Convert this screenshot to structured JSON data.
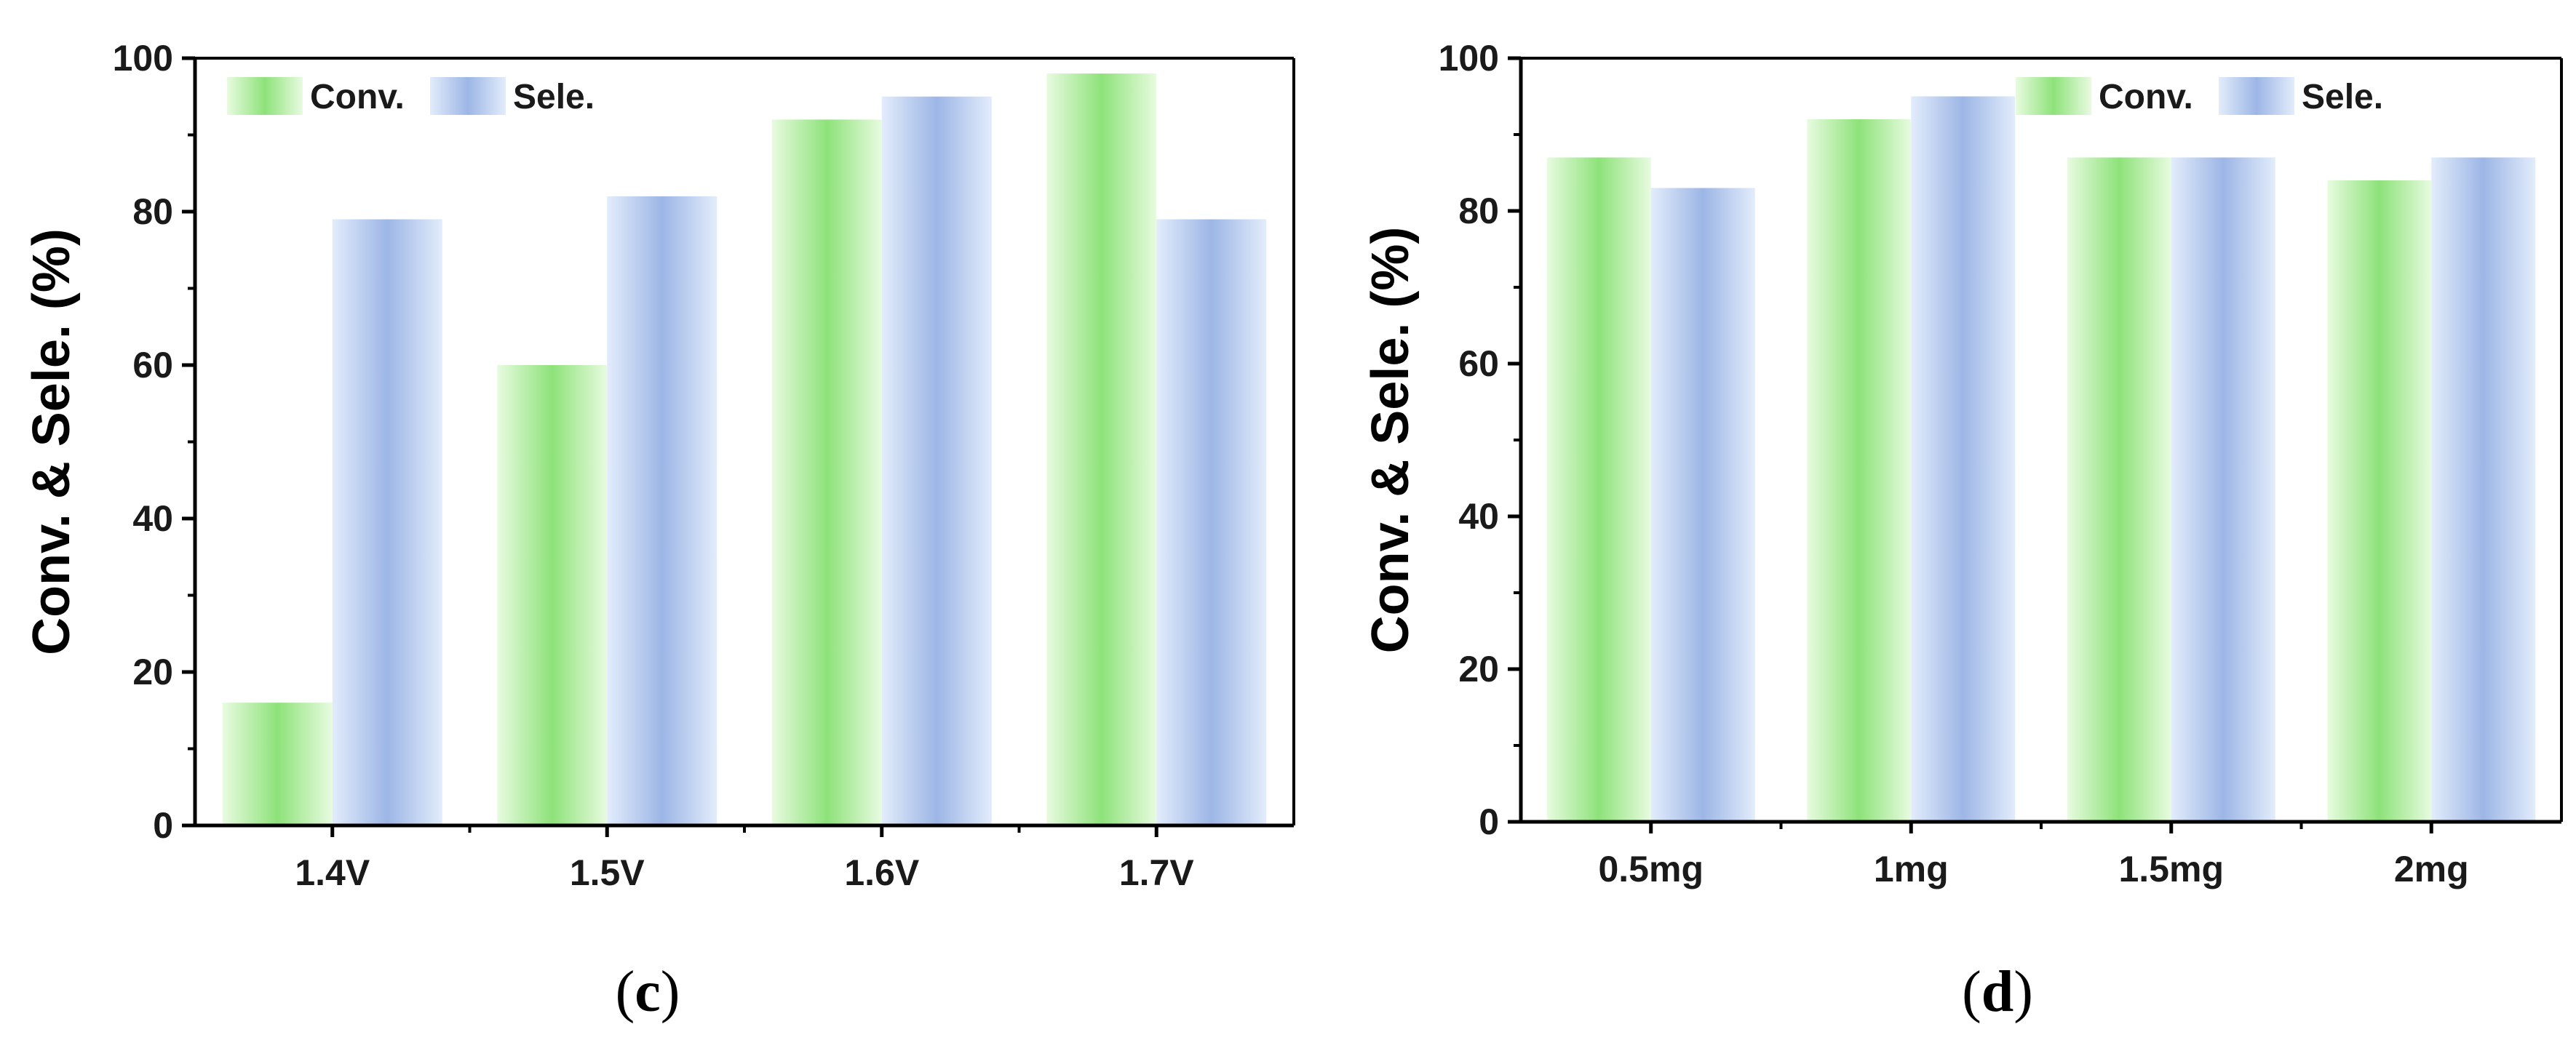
{
  "colors": {
    "conv_light": "#e8fbe0",
    "conv_dark": "#8ee27a",
    "sele_light": "#e2ecfb",
    "sele_dark": "#9db6e6",
    "axis": "#000000"
  },
  "chart_data": [
    {
      "id": "c",
      "type": "bar",
      "caption": "c",
      "ylabel": "Conv. & Sele. (%)",
      "xlabel": "",
      "ylim": [
        0,
        100
      ],
      "yticks": [
        0,
        20,
        40,
        60,
        80,
        100
      ],
      "categories": [
        "1.4V",
        "1.5V",
        "1.6V",
        "1.7V"
      ],
      "legend_position": "top-left",
      "series": [
        {
          "name": "Conv.",
          "values": [
            16,
            60,
            92,
            98
          ]
        },
        {
          "name": "Sele.",
          "values": [
            79,
            82,
            95,
            79
          ]
        }
      ]
    },
    {
      "id": "d",
      "type": "bar",
      "caption": "d",
      "ylabel": "Conv. & Sele. (%)",
      "xlabel": "",
      "ylim": [
        0,
        100
      ],
      "yticks": [
        0,
        20,
        40,
        60,
        80,
        100
      ],
      "categories": [
        "0.5mg",
        "1mg",
        "1.5mg",
        "2mg"
      ],
      "legend_position": "top-right",
      "series": [
        {
          "name": "Conv.",
          "values": [
            87,
            92,
            87,
            84
          ]
        },
        {
          "name": "Sele.",
          "values": [
            83,
            95,
            87,
            87
          ]
        }
      ]
    }
  ]
}
